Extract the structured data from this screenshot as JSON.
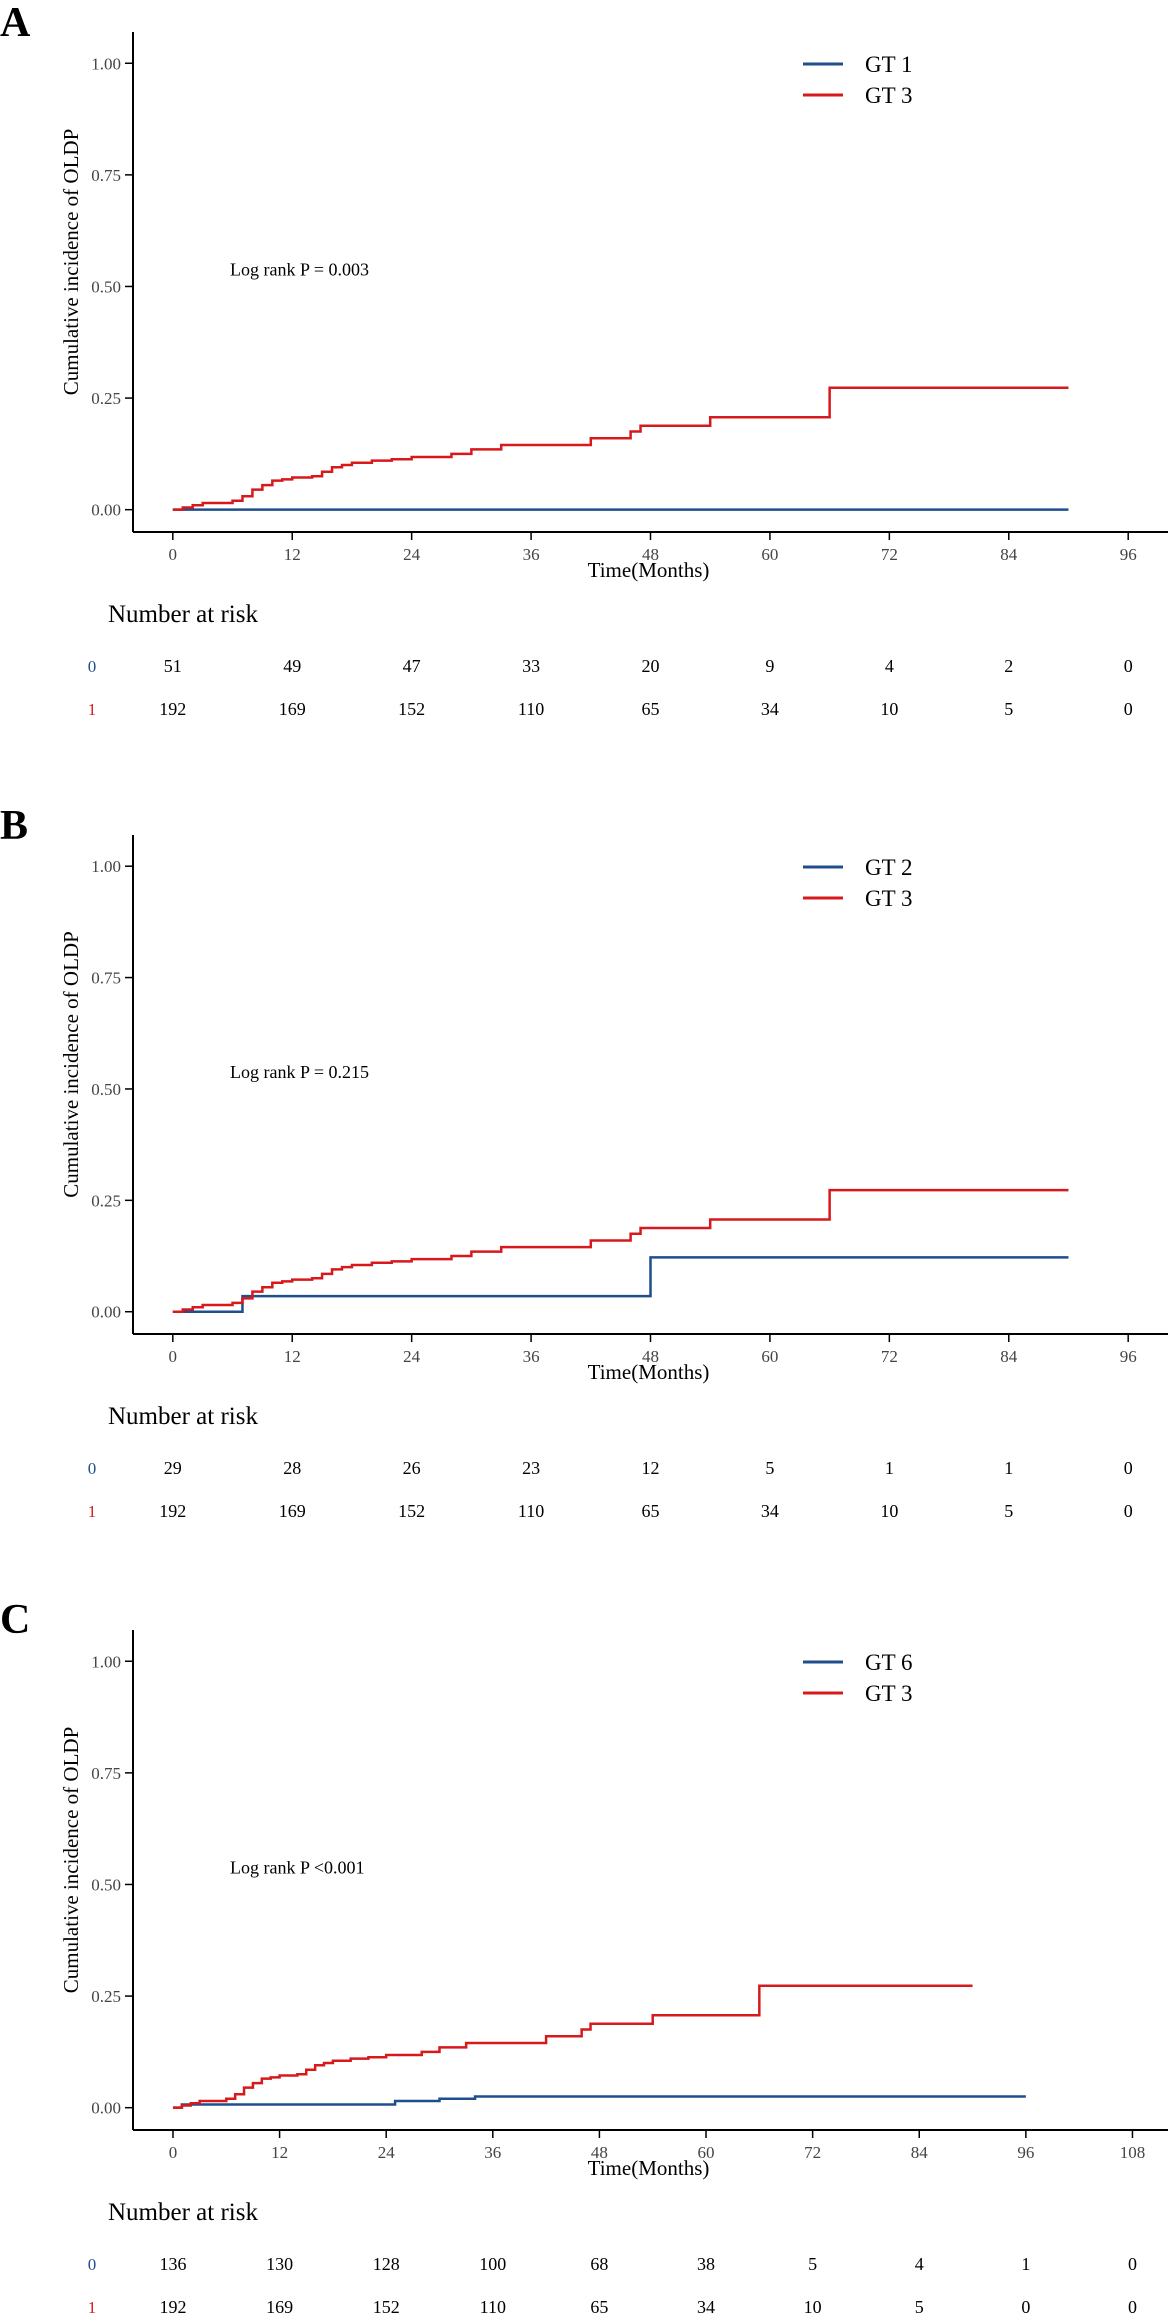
{
  "figure": {
    "colors": {
      "series_a": "#1f4e8c",
      "series_b": "#d7191c",
      "axis": "#000000"
    }
  },
  "chart_data": [
    {
      "panel_label": "A",
      "type": "line",
      "title": "",
      "xlabel": "Time(Months)",
      "ylabel": "Cumulative incidence of OLDP",
      "xlim": [
        -4,
        100
      ],
      "ylim": [
        -0.05,
        1.07
      ],
      "xticks": [
        "0",
        "12",
        "24",
        "36",
        "48",
        "60",
        "72",
        "84",
        "96"
      ],
      "yticks": [
        "0.00",
        "0.25",
        "0.50",
        "0.75",
        "1.00"
      ],
      "annotation": "Log rank P = 0.003",
      "legend": [
        "GT 1",
        "GT 3"
      ],
      "series": [
        {
          "name": "GT 1",
          "color": "#1f4e8c",
          "points": [
            [
              0,
              0.0
            ],
            [
              90,
              0.0
            ]
          ]
        },
        {
          "name": "GT 3",
          "color": "#d7191c",
          "points": [
            [
              0,
              0
            ],
            [
              1,
              0.005
            ],
            [
              2,
              0.01
            ],
            [
              3,
              0.015
            ],
            [
              6,
              0.02
            ],
            [
              7,
              0.03
            ],
            [
              8,
              0.045
            ],
            [
              9,
              0.055
            ],
            [
              10,
              0.065
            ],
            [
              11,
              0.068
            ],
            [
              12,
              0.072
            ],
            [
              14,
              0.075
            ],
            [
              15,
              0.085
            ],
            [
              16,
              0.095
            ],
            [
              17,
              0.1
            ],
            [
              18,
              0.105
            ],
            [
              20,
              0.11
            ],
            [
              22,
              0.113
            ],
            [
              24,
              0.118
            ],
            [
              28,
              0.125
            ],
            [
              30,
              0.135
            ],
            [
              33,
              0.145
            ],
            [
              42,
              0.16
            ],
            [
              46,
              0.175
            ],
            [
              47,
              0.188
            ],
            [
              54,
              0.207
            ],
            [
              66,
              0.273
            ],
            [
              90,
              0.273
            ]
          ]
        }
      ],
      "risk_table": {
        "title": "Number at risk",
        "rows": [
          {
            "label": "0",
            "color": "#1f4e8c",
            "values": [
              "51",
              "49",
              "47",
              "33",
              "20",
              "9",
              "4",
              "2",
              "0"
            ]
          },
          {
            "label": "1",
            "color": "#d7191c",
            "values": [
              "192",
              "169",
              "152",
              "110",
              "65",
              "34",
              "10",
              "5",
              "0"
            ]
          }
        ]
      }
    },
    {
      "panel_label": "B",
      "type": "line",
      "title": "",
      "xlabel": "Time(Months)",
      "ylabel": "Cumulative incidence of OLDP",
      "xlim": [
        -4,
        100
      ],
      "ylim": [
        -0.05,
        1.07
      ],
      "xticks": [
        "0",
        "12",
        "24",
        "36",
        "48",
        "60",
        "72",
        "84",
        "96"
      ],
      "yticks": [
        "0.00",
        "0.25",
        "0.50",
        "0.75",
        "1.00"
      ],
      "annotation": "Log rank P = 0.215",
      "legend": [
        "GT 2",
        "GT 3"
      ],
      "series": [
        {
          "name": "GT 2",
          "color": "#1f4e8c",
          "points": [
            [
              0,
              0
            ],
            [
              7,
              0.035
            ],
            [
              48,
              0.122
            ],
            [
              90,
              0.122
            ]
          ]
        },
        {
          "name": "GT 3",
          "color": "#d7191c",
          "points": [
            [
              0,
              0
            ],
            [
              1,
              0.005
            ],
            [
              2,
              0.01
            ],
            [
              3,
              0.015
            ],
            [
              6,
              0.02
            ],
            [
              7,
              0.03
            ],
            [
              8,
              0.045
            ],
            [
              9,
              0.055
            ],
            [
              10,
              0.065
            ],
            [
              11,
              0.068
            ],
            [
              12,
              0.072
            ],
            [
              14,
              0.075
            ],
            [
              15,
              0.085
            ],
            [
              16,
              0.095
            ],
            [
              17,
              0.1
            ],
            [
              18,
              0.105
            ],
            [
              20,
              0.11
            ],
            [
              22,
              0.113
            ],
            [
              24,
              0.118
            ],
            [
              28,
              0.125
            ],
            [
              30,
              0.135
            ],
            [
              33,
              0.145
            ],
            [
              42,
              0.16
            ],
            [
              46,
              0.175
            ],
            [
              47,
              0.188
            ],
            [
              54,
              0.207
            ],
            [
              66,
              0.273
            ],
            [
              90,
              0.273
            ]
          ]
        }
      ],
      "risk_table": {
        "title": "Number at risk",
        "rows": [
          {
            "label": "0",
            "color": "#1f4e8c",
            "values": [
              "29",
              "28",
              "26",
              "23",
              "12",
              "5",
              "1",
              "1",
              "0"
            ]
          },
          {
            "label": "1",
            "color": "#d7191c",
            "values": [
              "192",
              "169",
              "152",
              "110",
              "65",
              "34",
              "10",
              "5",
              "0"
            ]
          }
        ]
      }
    },
    {
      "panel_label": "C",
      "type": "line",
      "title": "",
      "xlabel": "Time(Months)",
      "ylabel": "Cumulative incidence of OLDP",
      "xlim": [
        -4.5,
        112
      ],
      "ylim": [
        -0.05,
        1.07
      ],
      "xticks": [
        "0",
        "12",
        "24",
        "36",
        "48",
        "60",
        "72",
        "84",
        "96",
        "108"
      ],
      "yticks": [
        "0.00",
        "0.25",
        "0.50",
        "0.75",
        "1.00"
      ],
      "annotation": "Log rank P <0.001",
      "legend": [
        "GT 6",
        "GT 3"
      ],
      "series": [
        {
          "name": "GT 6",
          "color": "#1f4e8c",
          "points": [
            [
              0,
              0
            ],
            [
              1,
              0.007
            ],
            [
              25,
              0.015
            ],
            [
              30,
              0.02
            ],
            [
              34,
              0.025
            ],
            [
              96,
              0.025
            ]
          ]
        },
        {
          "name": "GT 3",
          "color": "#d7191c",
          "points": [
            [
              0,
              0
            ],
            [
              1,
              0.005
            ],
            [
              2,
              0.01
            ],
            [
              3,
              0.015
            ],
            [
              6,
              0.02
            ],
            [
              7,
              0.03
            ],
            [
              8,
              0.045
            ],
            [
              9,
              0.055
            ],
            [
              10,
              0.065
            ],
            [
              11,
              0.068
            ],
            [
              12,
              0.072
            ],
            [
              14,
              0.075
            ],
            [
              15,
              0.085
            ],
            [
              16,
              0.095
            ],
            [
              17,
              0.1
            ],
            [
              18,
              0.105
            ],
            [
              20,
              0.11
            ],
            [
              22,
              0.113
            ],
            [
              24,
              0.118
            ],
            [
              28,
              0.125
            ],
            [
              30,
              0.135
            ],
            [
              33,
              0.145
            ],
            [
              42,
              0.16
            ],
            [
              46,
              0.175
            ],
            [
              47,
              0.188
            ],
            [
              54,
              0.207
            ],
            [
              66,
              0.273
            ],
            [
              90,
              0.273
            ]
          ]
        }
      ],
      "risk_table": {
        "title": "Number at risk",
        "rows": [
          {
            "label": "0",
            "color": "#1f4e8c",
            "values": [
              "136",
              "130",
              "128",
              "100",
              "68",
              "38",
              "5",
              "4",
              "1",
              "0"
            ]
          },
          {
            "label": "1",
            "color": "#d7191c",
            "values": [
              "192",
              "169",
              "152",
              "110",
              "65",
              "34",
              "10",
              "5",
              "0",
              "0"
            ]
          }
        ]
      }
    }
  ]
}
